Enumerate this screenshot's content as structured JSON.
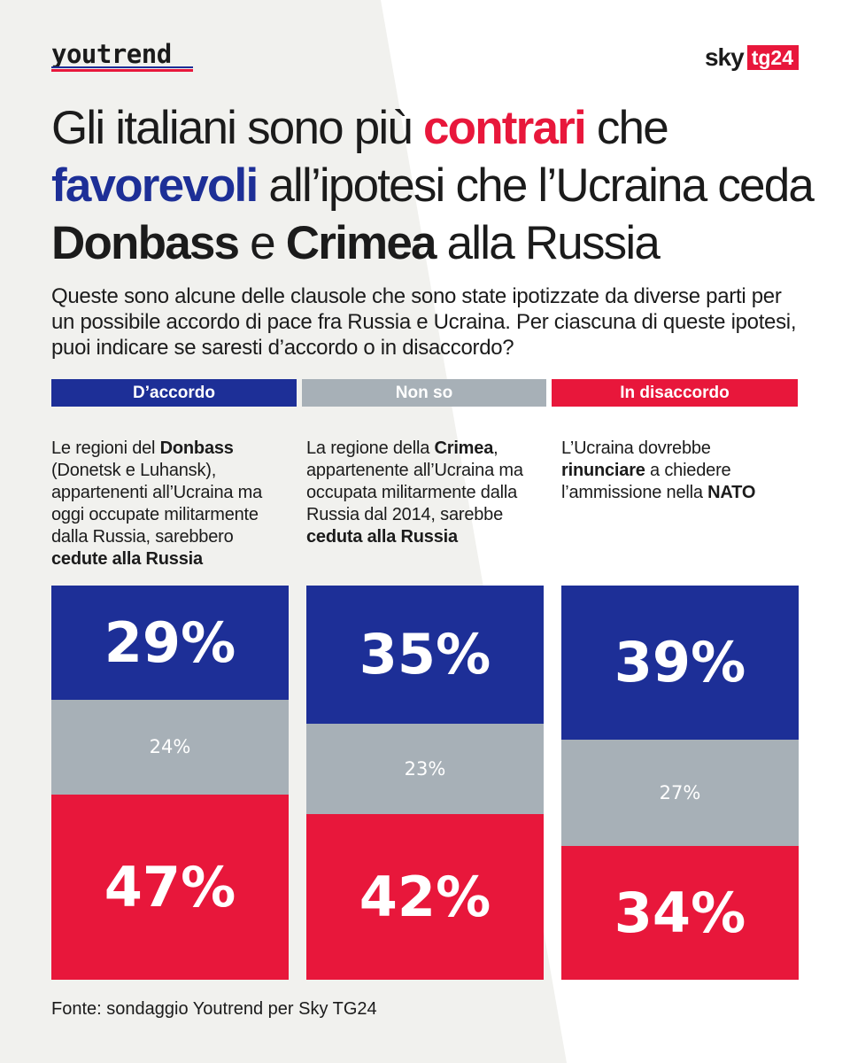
{
  "header": {
    "logo": "youtrend",
    "sky_word": "sky",
    "tg_word": "tg24"
  },
  "title": {
    "p1": "Gli italiani sono più ",
    "p2": "contrari",
    "p3": " che ",
    "p4": "favorevoli",
    "p5": " all’ipotesi che l’Ucraina ceda ",
    "p6": "Donbass",
    "p7": " e ",
    "p8": "Crimea",
    "p9": " alla Russia"
  },
  "question": "Queste sono alcune delle clausole che sono state ipotizzate da diverse parti per un possibile accordo di pace fra Russia e Ucraina. Per ciascuna di queste ipotesi, puoi indicare se saresti d’accordo o in disaccordo?",
  "legend": [
    {
      "label": "D’accordo",
      "color": "#1d2f97"
    },
    {
      "label": "Non so",
      "color": "#a7b0b7"
    },
    {
      "label": "In disaccordo",
      "color": "#e8173b"
    }
  ],
  "descriptions": [
    {
      "a": "Le regioni del ",
      "b": "Donbass",
      "c": " (Donetsk e Luhansk), appartenenti all’Ucraina ma oggi occupate militarmente dalla Russia, sarebbero ",
      "d": "cedute alla Russia",
      "e": ""
    },
    {
      "a": "La regione della ",
      "b": "Crimea",
      "c": ", appartenente all’Ucraina ma occupata militarmente dalla Russia dal 2014, sarebbe ",
      "d": "ceduta alla Russia",
      "e": ""
    },
    {
      "a": "L’Ucraina dovrebbe ",
      "b": "rinunciare",
      "c": " a chiedere l’ammissione nella ",
      "d": "NATO",
      "e": ""
    }
  ],
  "chart_data": {
    "type": "bar",
    "stacked": true,
    "orientation": "vertical",
    "categories": [
      "Donbass",
      "Crimea",
      "NATO"
    ],
    "series": [
      {
        "name": "D’accordo",
        "color": "#1d2f97",
        "values": [
          29,
          35,
          39
        ],
        "labels": [
          "29%",
          "35%",
          "39%"
        ]
      },
      {
        "name": "Non so",
        "color": "#a7b0b7",
        "values": [
          24,
          23,
          27
        ],
        "labels": [
          "24%",
          "23%",
          "27%"
        ]
      },
      {
        "name": "In disaccordo",
        "color": "#e8173b",
        "values": [
          47,
          42,
          34
        ],
        "labels": [
          "47%",
          "42%",
          "34%"
        ]
      }
    ],
    "ylim": [
      0,
      100
    ]
  },
  "source": "Fonte: sondaggio Youtrend per Sky TG24"
}
